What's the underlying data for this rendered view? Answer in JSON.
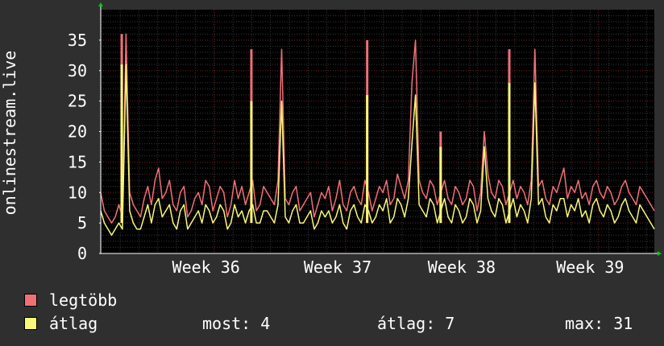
{
  "chart_data": {
    "type": "line",
    "title": "",
    "ylabel": "onlinestream.live",
    "xlabel": "",
    "ylim": [
      0,
      40
    ],
    "yticks": [
      0,
      5,
      10,
      15,
      20,
      25,
      30,
      35
    ],
    "xticks": [
      {
        "label": "Week 36",
        "pos": 0.2048
      },
      {
        "label": "Week 37",
        "pos": 0.4425
      },
      {
        "label": "Week 38",
        "pos": 0.6665
      },
      {
        "label": "Week 39",
        "pos": 0.8986
      }
    ],
    "grid": true,
    "legend_placement": "bottom-left",
    "series": [
      {
        "name": "legtöbb",
        "color": "#f07078",
        "spikes": [
          [
            0.038,
            36
          ],
          [
            0.2721,
            33.5
          ],
          [
            0.4813,
            35
          ],
          [
            0.614,
            20
          ],
          [
            0.738,
            33.5
          ]
        ],
        "values": [
          10,
          7,
          6,
          5,
          6,
          8,
          6,
          36,
          10,
          8,
          7,
          6,
          9,
          11,
          8,
          12,
          14,
          9,
          10,
          12,
          8,
          7,
          10,
          11,
          6,
          7,
          9,
          10,
          8,
          12,
          11,
          7,
          9,
          11,
          10,
          6,
          8,
          12,
          9,
          11,
          8,
          10,
          12,
          7,
          8,
          11,
          10,
          9,
          8,
          12,
          33.5,
          9,
          8,
          10,
          11,
          7,
          8,
          9,
          10,
          6,
          8,
          10,
          9,
          11,
          7,
          9,
          12,
          8,
          7,
          10,
          11,
          9,
          8,
          12,
          10,
          7,
          9,
          11,
          10,
          12,
          8,
          9,
          13,
          11,
          9,
          12,
          28,
          35,
          12,
          10,
          9,
          12,
          11,
          8,
          10,
          12,
          9,
          8,
          11,
          10,
          8,
          9,
          12,
          11,
          7,
          10,
          20,
          13,
          10,
          9,
          12,
          11,
          8,
          10,
          12,
          9,
          11,
          10,
          8,
          12,
          33.5,
          11,
          12,
          9,
          8,
          11,
          10,
          12,
          14,
          9,
          11,
          10,
          12,
          9,
          10,
          8,
          11,
          12,
          10,
          9,
          11,
          10,
          8,
          9,
          11,
          12,
          10,
          9,
          8,
          11,
          10,
          9,
          8,
          7
        ]
      },
      {
        "name": "átlag",
        "color": "#f8f878",
        "spikes": [
          [
            0.038,
            31
          ],
          [
            0.2721,
            25
          ],
          [
            0.4813,
            26
          ],
          [
            0.614,
            17.5
          ],
          [
            0.738,
            28
          ]
        ],
        "values": [
          7,
          5,
          4,
          3,
          4,
          5,
          4,
          31,
          7,
          5,
          4,
          4,
          6,
          8,
          5,
          8,
          9,
          6,
          7,
          8,
          5,
          4,
          7,
          8,
          4,
          5,
          6,
          7,
          5,
          8,
          7,
          5,
          6,
          8,
          7,
          4,
          5,
          8,
          6,
          7,
          5,
          7,
          8,
          5,
          5,
          7,
          7,
          6,
          5,
          8,
          25,
          6,
          5,
          7,
          8,
          5,
          5,
          6,
          7,
          4,
          5,
          7,
          6,
          7,
          5,
          6,
          8,
          5,
          4,
          7,
          8,
          6,
          5,
          8,
          7,
          5,
          6,
          8,
          7,
          9,
          5,
          6,
          9,
          8,
          6,
          9,
          18,
          26,
          8,
          7,
          6,
          9,
          8,
          5,
          7,
          9,
          6,
          5,
          8,
          7,
          5,
          6,
          9,
          8,
          5,
          7,
          17.5,
          9,
          7,
          6,
          9,
          8,
          5,
          7,
          9,
          6,
          8,
          7,
          5,
          9,
          28,
          8,
          9,
          6,
          5,
          8,
          7,
          9,
          9,
          6,
          8,
          7,
          9,
          6,
          7,
          5,
          8,
          9,
          7,
          6,
          8,
          7,
          5,
          6,
          8,
          9,
          7,
          6,
          5,
          8,
          7,
          6,
          5,
          4
        ]
      }
    ]
  },
  "legend": {
    "max_label": "legtöbb",
    "avg_label": "átlag"
  },
  "stats": {
    "now": "most: 4",
    "avg": "átlag: 7",
    "max": "max: 31"
  }
}
